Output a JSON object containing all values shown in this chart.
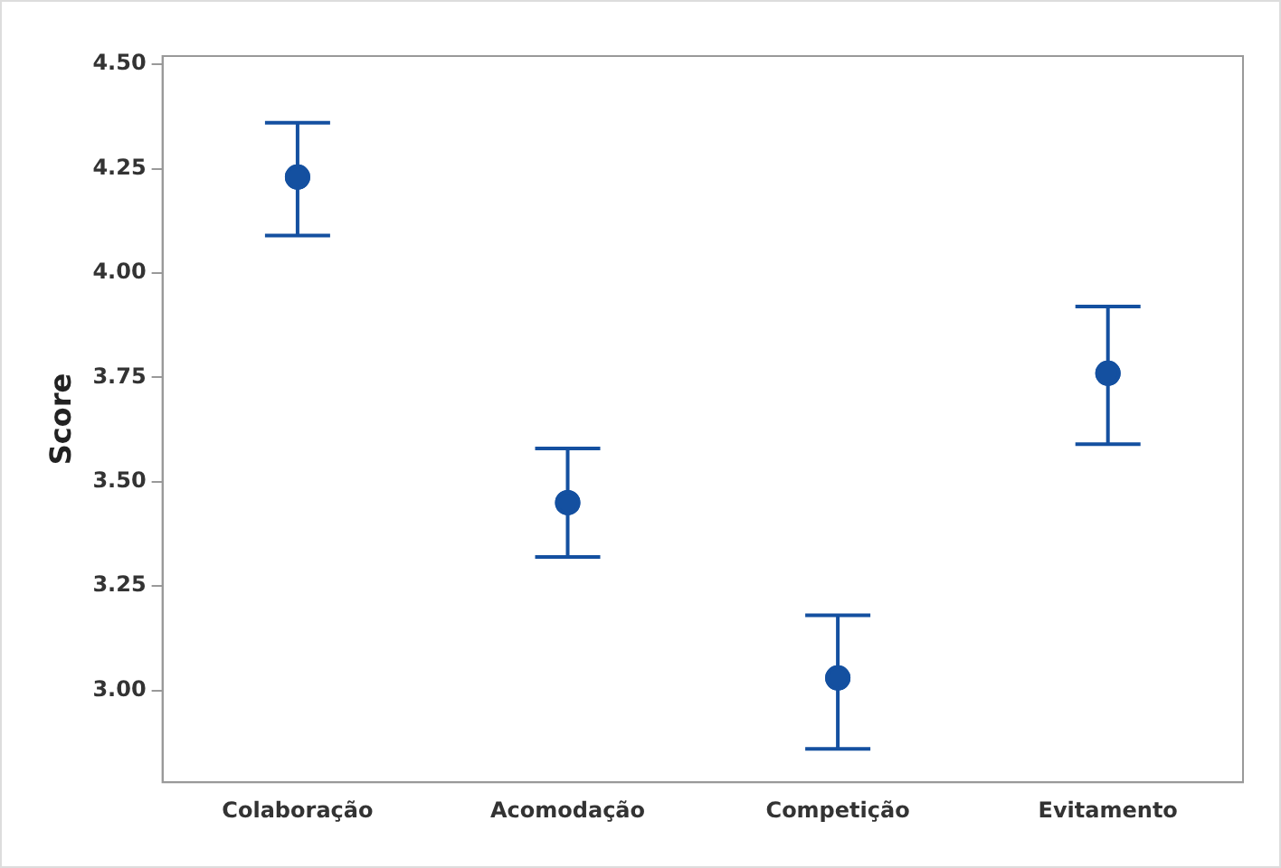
{
  "chart_data": {
    "type": "scatter",
    "ylabel": "Score",
    "categories": [
      "Colaboração",
      "Acomodação",
      "Competição",
      "Evitamento"
    ],
    "series": [
      {
        "color": "#1450a0",
        "values": [
          4.23,
          3.45,
          3.03,
          3.76
        ],
        "errors": [
          [
            4.09,
            4.36
          ],
          [
            3.32,
            3.58
          ],
          [
            2.86,
            3.18
          ],
          [
            3.59,
            3.92
          ]
        ]
      }
    ],
    "ylim": [
      2.78,
      4.52
    ],
    "yticks": [
      {
        "value": 3,
        "label": "3.00"
      },
      {
        "value": 3.25,
        "label": "3.25"
      },
      {
        "value": 3.5,
        "label": "3.50"
      },
      {
        "value": 3.75,
        "label": "3.75"
      },
      {
        "value": 4,
        "label": "4.00"
      },
      {
        "value": 4.25,
        "label": "4.25"
      },
      {
        "value": 4.5,
        "label": "4.50"
      }
    ],
    "grid": false,
    "legend": false,
    "marker": "circle"
  }
}
